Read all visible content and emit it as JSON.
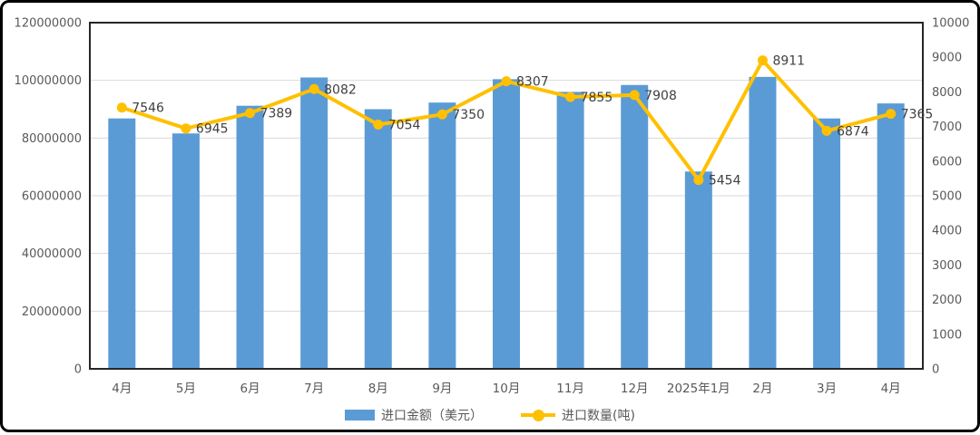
{
  "chart_data": {
    "type": "combo",
    "title": "",
    "categories": [
      "4月",
      "5月",
      "6月",
      "7月",
      "8月",
      "9月",
      "10月",
      "11月",
      "12月",
      "2025年1月",
      "2月",
      "3月",
      "4月"
    ],
    "series": [
      {
        "name": "进口金额（美元）",
        "type": "bar",
        "axis": "left",
        "color": "#5B9BD5",
        "values": [
          86800000,
          81600000,
          91200000,
          101000000,
          90000000,
          92300000,
          100400000,
          96000000,
          98400000,
          68400000,
          101200000,
          86800000,
          92000000
        ]
      },
      {
        "name": "进口数量(吨)",
        "type": "line",
        "axis": "right",
        "color": "#FFC000",
        "values": [
          7546,
          6945,
          7389,
          8082,
          7054,
          7350,
          8307,
          7855,
          7908,
          5454,
          8911,
          6874,
          7365
        ],
        "data_labels": [
          "7546",
          "6945",
          "7389",
          "8082",
          "7054",
          "7350",
          "8307",
          "7855",
          "7908",
          "5454",
          "8911",
          "6874",
          "7365"
        ]
      }
    ],
    "left_axis": {
      "min": 0,
      "max": 120000000,
      "step": 20000000,
      "tick_labels": [
        "120000000",
        "100000000",
        "80000000",
        "60000000",
        "40000000",
        "20000000",
        "0"
      ]
    },
    "right_axis": {
      "min": 0,
      "max": 10000,
      "step": 1000,
      "tick_labels": [
        "10000",
        "9000",
        "8000",
        "7000",
        "6000",
        "5000",
        "4000",
        "3000",
        "2000",
        "1000",
        "0"
      ]
    },
    "grid": true,
    "legend_position": "bottom",
    "colors": {
      "gridline": "#D9D9D9",
      "plot_border": "#262626",
      "axis_text": "#595959",
      "data_label_text": "#404040",
      "frame_border": "#000000",
      "background": "#ffffff"
    }
  }
}
